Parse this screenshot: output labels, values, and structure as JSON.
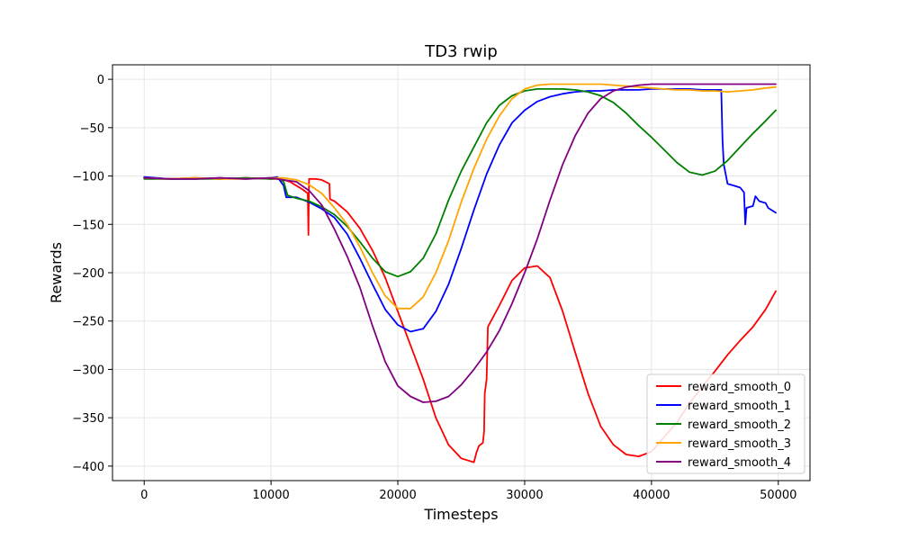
{
  "chart_data": {
    "type": "line",
    "title": "TD3 rwip",
    "xlabel": "Timesteps",
    "ylabel": "Rewards",
    "xlim": [
      -2500,
      52500
    ],
    "ylim": [
      -415,
      15
    ],
    "xticks": [
      0,
      10000,
      20000,
      30000,
      40000,
      50000
    ],
    "yticks": [
      0,
      -50,
      -100,
      -150,
      -200,
      -250,
      -300,
      -350,
      -400
    ],
    "xtick_labels": [
      "0",
      "10000",
      "20000",
      "30000",
      "40000",
      "50000"
    ],
    "ytick_labels": [
      "0",
      "−50",
      "−100",
      "−150",
      "−200",
      "−250",
      "−300",
      "−350",
      "−400"
    ],
    "grid": true,
    "legend_position": "lower right",
    "series": [
      {
        "name": "reward_smooth_0",
        "color": "#ff0000",
        "points": [
          [
            0,
            -102
          ],
          [
            2000,
            -103
          ],
          [
            4000,
            -102
          ],
          [
            6000,
            -103
          ],
          [
            8000,
            -102
          ],
          [
            10000,
            -103
          ],
          [
            10500,
            -103
          ],
          [
            11000,
            -104
          ],
          [
            11500,
            -106
          ],
          [
            12000,
            -110
          ],
          [
            12500,
            -114
          ],
          [
            12900,
            -118
          ],
          [
            12950,
            -161
          ],
          [
            13000,
            -103
          ],
          [
            13500,
            -103
          ],
          [
            14000,
            -104
          ],
          [
            14600,
            -108
          ],
          [
            14650,
            -124
          ],
          [
            15000,
            -126
          ],
          [
            16000,
            -137
          ],
          [
            17000,
            -154
          ],
          [
            18000,
            -177
          ],
          [
            19000,
            -205
          ],
          [
            20000,
            -240
          ],
          [
            21000,
            -275
          ],
          [
            22000,
            -310
          ],
          [
            23000,
            -350
          ],
          [
            24000,
            -378
          ],
          [
            25000,
            -392
          ],
          [
            26000,
            -396
          ],
          [
            26200,
            -386
          ],
          [
            26400,
            -379
          ],
          [
            26700,
            -376
          ],
          [
            26800,
            -364
          ],
          [
            26850,
            -325
          ],
          [
            27000,
            -310
          ],
          [
            27100,
            -256
          ],
          [
            28000,
            -234
          ],
          [
            29000,
            -208
          ],
          [
            30000,
            -195
          ],
          [
            31000,
            -193
          ],
          [
            32000,
            -205
          ],
          [
            33000,
            -240
          ],
          [
            34000,
            -283
          ],
          [
            35000,
            -325
          ],
          [
            36000,
            -359
          ],
          [
            37000,
            -378
          ],
          [
            38000,
            -388
          ],
          [
            39000,
            -390
          ],
          [
            40000,
            -385
          ],
          [
            41000,
            -370
          ],
          [
            42000,
            -355
          ],
          [
            43000,
            -335
          ],
          [
            44000,
            -318
          ],
          [
            45000,
            -302
          ],
          [
            46000,
            -285
          ],
          [
            47000,
            -270
          ],
          [
            48000,
            -256
          ],
          [
            49000,
            -238
          ],
          [
            49800,
            -219
          ]
        ]
      },
      {
        "name": "reward_smooth_1",
        "color": "#0000ff",
        "points": [
          [
            0,
            -101
          ],
          [
            2000,
            -103
          ],
          [
            4000,
            -103
          ],
          [
            6000,
            -102
          ],
          [
            8000,
            -103
          ],
          [
            10000,
            -102
          ],
          [
            10500,
            -101
          ],
          [
            11000,
            -110
          ],
          [
            11200,
            -122
          ],
          [
            12000,
            -122
          ],
          [
            13000,
            -127
          ],
          [
            14000,
            -134
          ],
          [
            15000,
            -143
          ],
          [
            16000,
            -160
          ],
          [
            17000,
            -185
          ],
          [
            18000,
            -212
          ],
          [
            19000,
            -238
          ],
          [
            20000,
            -254
          ],
          [
            21000,
            -261
          ],
          [
            22000,
            -258
          ],
          [
            23000,
            -240
          ],
          [
            24000,
            -212
          ],
          [
            25000,
            -175
          ],
          [
            26000,
            -135
          ],
          [
            27000,
            -98
          ],
          [
            28000,
            -68
          ],
          [
            29000,
            -45
          ],
          [
            30000,
            -32
          ],
          [
            31000,
            -23
          ],
          [
            32000,
            -18
          ],
          [
            33000,
            -15
          ],
          [
            34000,
            -13
          ],
          [
            35000,
            -12
          ],
          [
            36000,
            -12
          ],
          [
            37000,
            -11
          ],
          [
            38000,
            -11
          ],
          [
            39000,
            -11
          ],
          [
            40000,
            -10
          ],
          [
            41000,
            -10
          ],
          [
            42000,
            -10
          ],
          [
            43000,
            -10
          ],
          [
            44000,
            -11
          ],
          [
            45000,
            -11
          ],
          [
            45500,
            -11
          ],
          [
            45600,
            -63
          ],
          [
            45700,
            -88
          ],
          [
            46000,
            -108
          ],
          [
            46500,
            -110
          ],
          [
            47000,
            -112
          ],
          [
            47300,
            -117
          ],
          [
            47400,
            -150
          ],
          [
            47500,
            -133
          ],
          [
            48000,
            -131
          ],
          [
            48200,
            -121
          ],
          [
            48500,
            -126
          ],
          [
            49000,
            -128
          ],
          [
            49200,
            -133
          ],
          [
            49800,
            -138
          ]
        ]
      },
      {
        "name": "reward_smooth_2",
        "color": "#008000",
        "points": [
          [
            0,
            -103
          ],
          [
            2000,
            -103
          ],
          [
            4000,
            -103
          ],
          [
            6000,
            -103
          ],
          [
            8000,
            -102
          ],
          [
            10000,
            -103
          ],
          [
            10600,
            -102
          ],
          [
            11000,
            -106
          ],
          [
            11300,
            -120
          ],
          [
            12000,
            -123
          ],
          [
            13000,
            -126
          ],
          [
            14000,
            -132
          ],
          [
            15000,
            -140
          ],
          [
            16000,
            -152
          ],
          [
            17000,
            -168
          ],
          [
            18000,
            -185
          ],
          [
            19000,
            -199
          ],
          [
            20000,
            -204
          ],
          [
            21000,
            -199
          ],
          [
            22000,
            -185
          ],
          [
            23000,
            -160
          ],
          [
            24000,
            -125
          ],
          [
            25000,
            -95
          ],
          [
            26000,
            -70
          ],
          [
            27000,
            -45
          ],
          [
            28000,
            -27
          ],
          [
            29000,
            -17
          ],
          [
            30000,
            -12
          ],
          [
            31000,
            -10
          ],
          [
            32000,
            -10
          ],
          [
            33000,
            -10
          ],
          [
            34000,
            -11
          ],
          [
            35000,
            -13
          ],
          [
            36000,
            -17
          ],
          [
            37000,
            -24
          ],
          [
            38000,
            -35
          ],
          [
            39000,
            -48
          ],
          [
            40000,
            -60
          ],
          [
            41000,
            -73
          ],
          [
            42000,
            -86
          ],
          [
            43000,
            -96
          ],
          [
            44000,
            -99
          ],
          [
            45000,
            -95
          ],
          [
            46000,
            -84
          ],
          [
            47000,
            -70
          ],
          [
            48000,
            -56
          ],
          [
            49000,
            -43
          ],
          [
            49800,
            -32
          ]
        ]
      },
      {
        "name": "reward_smooth_3",
        "color": "#ffa500",
        "points": [
          [
            0,
            -102
          ],
          [
            2000,
            -103
          ],
          [
            4000,
            -102
          ],
          [
            6000,
            -103
          ],
          [
            8000,
            -103
          ],
          [
            10000,
            -102
          ],
          [
            11000,
            -102
          ],
          [
            12000,
            -104
          ],
          [
            13000,
            -109
          ],
          [
            14000,
            -118
          ],
          [
            15000,
            -133
          ],
          [
            16000,
            -150
          ],
          [
            17000,
            -173
          ],
          [
            18000,
            -200
          ],
          [
            19000,
            -224
          ],
          [
            20000,
            -237
          ],
          [
            21000,
            -237
          ],
          [
            22000,
            -225
          ],
          [
            23000,
            -200
          ],
          [
            24000,
            -167
          ],
          [
            25000,
            -127
          ],
          [
            26000,
            -92
          ],
          [
            27000,
            -62
          ],
          [
            28000,
            -38
          ],
          [
            29000,
            -20
          ],
          [
            30000,
            -10
          ],
          [
            31000,
            -6
          ],
          [
            32000,
            -5
          ],
          [
            33000,
            -5
          ],
          [
            34000,
            -5
          ],
          [
            35000,
            -5
          ],
          [
            36000,
            -5
          ],
          [
            37000,
            -6
          ],
          [
            38000,
            -7
          ],
          [
            39000,
            -8
          ],
          [
            40000,
            -9
          ],
          [
            41000,
            -10
          ],
          [
            42000,
            -11
          ],
          [
            43000,
            -11
          ],
          [
            44000,
            -12
          ],
          [
            45000,
            -12
          ],
          [
            46000,
            -13
          ],
          [
            47000,
            -12
          ],
          [
            48000,
            -11
          ],
          [
            49000,
            -9
          ],
          [
            49800,
            -8
          ]
        ]
      },
      {
        "name": "reward_smooth_4",
        "color": "#800080",
        "points": [
          [
            0,
            -102
          ],
          [
            2000,
            -103
          ],
          [
            4000,
            -103
          ],
          [
            6000,
            -102
          ],
          [
            8000,
            -103
          ],
          [
            10000,
            -102
          ],
          [
            11000,
            -104
          ],
          [
            12000,
            -106
          ],
          [
            13000,
            -115
          ],
          [
            14000,
            -130
          ],
          [
            15000,
            -155
          ],
          [
            16000,
            -183
          ],
          [
            17000,
            -215
          ],
          [
            18000,
            -255
          ],
          [
            19000,
            -292
          ],
          [
            20000,
            -317
          ],
          [
            21000,
            -328
          ],
          [
            22000,
            -334
          ],
          [
            23000,
            -333
          ],
          [
            24000,
            -328
          ],
          [
            25000,
            -316
          ],
          [
            26000,
            -300
          ],
          [
            27000,
            -282
          ],
          [
            28000,
            -260
          ],
          [
            29000,
            -232
          ],
          [
            30000,
            -200
          ],
          [
            31000,
            -165
          ],
          [
            32000,
            -125
          ],
          [
            33000,
            -88
          ],
          [
            34000,
            -58
          ],
          [
            35000,
            -35
          ],
          [
            36000,
            -20
          ],
          [
            37000,
            -12
          ],
          [
            38000,
            -8
          ],
          [
            39000,
            -6
          ],
          [
            40000,
            -5
          ],
          [
            41000,
            -5
          ],
          [
            42000,
            -5
          ],
          [
            43000,
            -5
          ],
          [
            44000,
            -5
          ],
          [
            45000,
            -5
          ],
          [
            46000,
            -5
          ],
          [
            47000,
            -5
          ],
          [
            48000,
            -5
          ],
          [
            49000,
            -5
          ],
          [
            49800,
            -5
          ]
        ]
      }
    ]
  }
}
